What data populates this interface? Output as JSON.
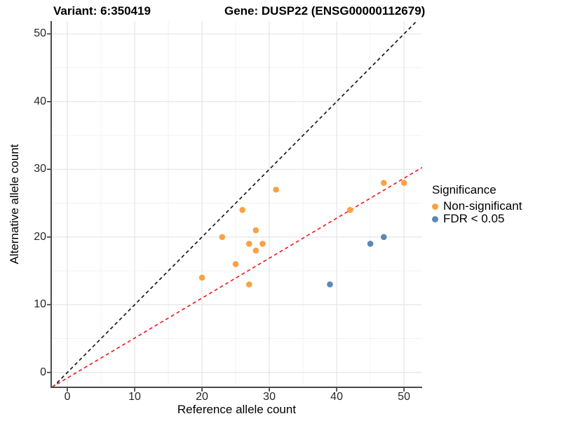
{
  "titles": {
    "variant": "Variant: 6:350419",
    "gene": "Gene: DUSP22 (ENSG00000112679)"
  },
  "chart_data": {
    "type": "scatter",
    "xlabel": "Reference allele count",
    "ylabel": "Alternative allele count",
    "xlim": [
      -2.4,
      52.7
    ],
    "ylim": [
      -2.2,
      51.9
    ],
    "x_ticks": [
      0,
      10,
      20,
      30,
      40,
      50
    ],
    "y_ticks": [
      0,
      10,
      20,
      30,
      40,
      50
    ],
    "x_minor_gridlines": [
      5,
      15,
      25,
      35,
      45
    ],
    "y_minor_gridlines": [
      5,
      15,
      25,
      35,
      45
    ],
    "grid": true,
    "legend_position": "right",
    "series": [
      {
        "name": "Non-significant",
        "color": "#F9A243",
        "points": [
          [
            20,
            14
          ],
          [
            23,
            20
          ],
          [
            25,
            16
          ],
          [
            26,
            24
          ],
          [
            27,
            13
          ],
          [
            27,
            19
          ],
          [
            28,
            18
          ],
          [
            28,
            21
          ],
          [
            29,
            19
          ],
          [
            31,
            27
          ],
          [
            42,
            24
          ],
          [
            47,
            28
          ],
          [
            50,
            28
          ]
        ]
      },
      {
        "name": "FDR < 0.05",
        "color": "#5A88B8",
        "points": [
          [
            39,
            13
          ],
          [
            45,
            19
          ],
          [
            47,
            20
          ]
        ]
      }
    ],
    "lines": [
      {
        "name": "identity-line",
        "slope": 1,
        "intercept": 0,
        "color": "#1A1A1A",
        "dash": "5 4"
      },
      {
        "name": "fit-line",
        "slope": 0.59,
        "intercept": -0.82,
        "color": "#EE2224",
        "dash": "5 4"
      }
    ]
  },
  "legend": {
    "title": "Significance",
    "items": [
      {
        "label": "Non-significant",
        "color": "#F9A243"
      },
      {
        "label": "FDR < 0.05",
        "color": "#5A88B8"
      }
    ]
  },
  "colors": {
    "major_grid": "#E4E4E4",
    "minor_grid": "#F2F2F2",
    "axis_line": "#4A4A4A",
    "tick_mark": "#333333"
  }
}
